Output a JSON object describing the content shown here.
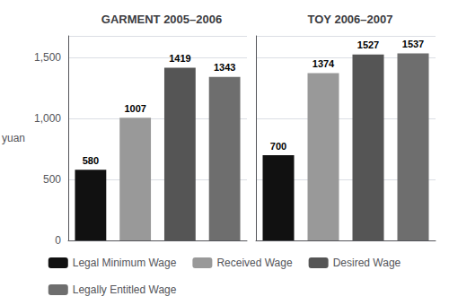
{
  "chart_data": [
    {
      "type": "bar",
      "title": "GARMENT 2005–2006",
      "categories": [
        "Legal Minimum Wage",
        "Received Wage",
        "Desired Wage",
        "Legally Entitled Wage"
      ],
      "values": [
        580,
        1007,
        1419,
        1343
      ],
      "colors": [
        "#111111",
        "#999999",
        "#555555",
        "#6e6e6e"
      ],
      "ylabel": "yuan",
      "ylim": [
        0,
        1680
      ],
      "yticks": [
        0,
        500,
        {
          "value": 1000,
          "label": "1,000"
        },
        {
          "value": 1500,
          "label": "1,500"
        }
      ],
      "grid": true,
      "data_labels": true,
      "tick_labels": "y",
      "legend": "bottom"
    },
    {
      "type": "bar",
      "title": "TOY 2006–2007",
      "categories": [
        "Legal Minimum Wage",
        "Received Wage",
        "Desired Wage",
        "Legally Entitled Wage"
      ],
      "values": [
        700,
        1374,
        1527,
        1537
      ],
      "colors": [
        "#111111",
        "#999999",
        "#555555",
        "#6e6e6e"
      ],
      "ylim": [
        0,
        1680
      ],
      "yticks": [
        0,
        500,
        {
          "value": 1000,
          "label": "1,000"
        },
        {
          "value": 1500,
          "label": "1,500"
        }
      ],
      "grid": true,
      "data_labels": true,
      "tick_labels": false
    }
  ]
}
